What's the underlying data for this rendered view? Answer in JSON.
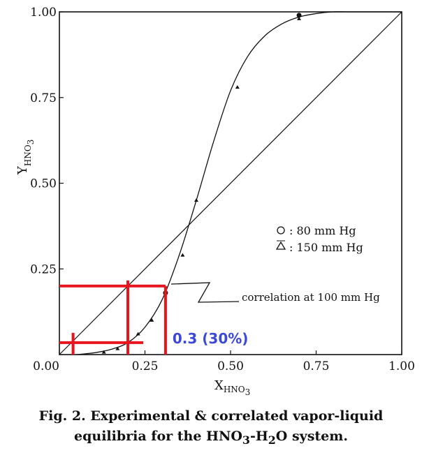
{
  "chart_data": {
    "type": "line",
    "xlabel": "X",
    "xlabel_sub": "HNO",
    "xlabel_sub2": "3",
    "ylabel": "Y",
    "ylabel_sub": "HNO",
    "ylabel_sub2": "3",
    "xlim": [
      0,
      1
    ],
    "ylim": [
      0,
      1
    ],
    "x_ticks": [
      {
        "value": 0.0,
        "label": "0.00"
      },
      {
        "value": 0.25,
        "label": "0.25"
      },
      {
        "value": 0.5,
        "label": "0.50"
      },
      {
        "value": 0.75,
        "label": "0.75"
      },
      {
        "value": 1.0,
        "label": "1.00"
      }
    ],
    "y_ticks": [
      {
        "value": 0.25,
        "label": "0.25"
      },
      {
        "value": 0.5,
        "label": "0.50"
      },
      {
        "value": 0.75,
        "label": "0.75"
      },
      {
        "value": 1.0,
        "label": "1.00"
      }
    ],
    "series": [
      {
        "style": "curve",
        "x": [
          0.05,
          0.1,
          0.15,
          0.2,
          0.25,
          0.3,
          0.35,
          0.4,
          0.45,
          0.5,
          0.55,
          0.6,
          0.65,
          0.7,
          0.75,
          0.8,
          0.85,
          0.9,
          1.0
        ],
        "y": [
          0.0,
          0.005,
          0.015,
          0.035,
          0.08,
          0.16,
          0.29,
          0.45,
          0.62,
          0.77,
          0.87,
          0.93,
          0.965,
          0.985,
          0.995,
          1.0,
          1.0,
          1.0,
          1.0
        ]
      },
      {
        "style": "diagonal",
        "x": [
          0,
          1
        ],
        "y": [
          0,
          1
        ]
      }
    ],
    "points_150": [
      {
        "x": 0.13,
        "y": 0.007
      },
      {
        "x": 0.17,
        "y": 0.017
      },
      {
        "x": 0.23,
        "y": 0.06
      },
      {
        "x": 0.27,
        "y": 0.1
      },
      {
        "x": 0.36,
        "y": 0.29
      },
      {
        "x": 0.4,
        "y": 0.45
      },
      {
        "x": 0.52,
        "y": 0.78
      },
      {
        "x": 0.7,
        "y": 0.98
      }
    ],
    "points_80": [
      {
        "x": 0.31,
        "y": 0.18
      },
      {
        "x": 0.7,
        "y": 0.99
      }
    ],
    "legend": [
      {
        "symbol": "circle-icon",
        "text": ":   80 mm Hg"
      },
      {
        "symbol": "triangle-icon",
        "text": ": 150 mm Hg"
      }
    ],
    "annotation": "correlation at 100 mm Hg",
    "overlay": {
      "color": "#e8141e",
      "blue_color": "#3b48d8",
      "label": "0.3 (30%)",
      "h_line_upper_y": 0.2,
      "h_line_lower_y": 0.035,
      "v_line_x": [
        0.04,
        0.2,
        0.31
      ]
    }
  },
  "caption": {
    "line1": "Fig. 2. Experimental & correlated vapor-liquid",
    "line2_pre": "equilibria for the HNO",
    "line2_sub1": "3",
    "line2_mid": "-H",
    "line2_sub2": "2",
    "line2_post": "O system."
  }
}
